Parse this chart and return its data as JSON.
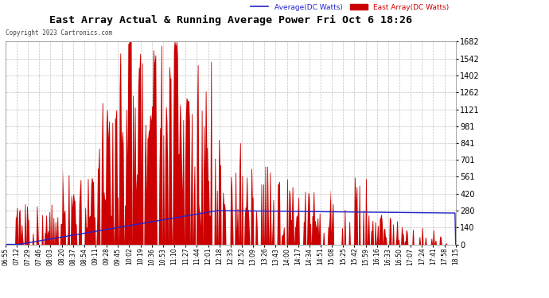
{
  "title": "East Array Actual & Running Average Power Fri Oct 6 18:26",
  "copyright": "Copyright 2023 Cartronics.com",
  "legend_average": "Average(DC Watts)",
  "legend_east": "East Array(DC Watts)",
  "ymax": 1682.0,
  "ymin": 0.0,
  "yticks": [
    0.0,
    140.2,
    280.3,
    420.5,
    560.7,
    700.8,
    841.0,
    981.1,
    1121.3,
    1261.5,
    1401.6,
    1541.8,
    1682.0
  ],
  "background_color": "#ffffff",
  "plot_bg_color": "#ffffff",
  "grid_color": "#bbbbbb",
  "fill_color": "#cc0000",
  "avg_line_color": "#2222cc",
  "title_color": "#000000",
  "copyright_color": "#444444",
  "xtick_labels": [
    "06:55",
    "07:12",
    "07:29",
    "07:46",
    "08:03",
    "08:20",
    "08:37",
    "08:54",
    "09:11",
    "09:28",
    "09:45",
    "10:02",
    "10:19",
    "10:36",
    "10:53",
    "11:10",
    "11:27",
    "11:44",
    "12:01",
    "12:18",
    "12:35",
    "12:52",
    "13:09",
    "13:26",
    "13:43",
    "14:00",
    "14:17",
    "14:34",
    "14:51",
    "15:08",
    "15:25",
    "15:42",
    "15:59",
    "16:16",
    "16:33",
    "16:50",
    "17:07",
    "17:24",
    "17:41",
    "17:58",
    "18:15"
  ]
}
